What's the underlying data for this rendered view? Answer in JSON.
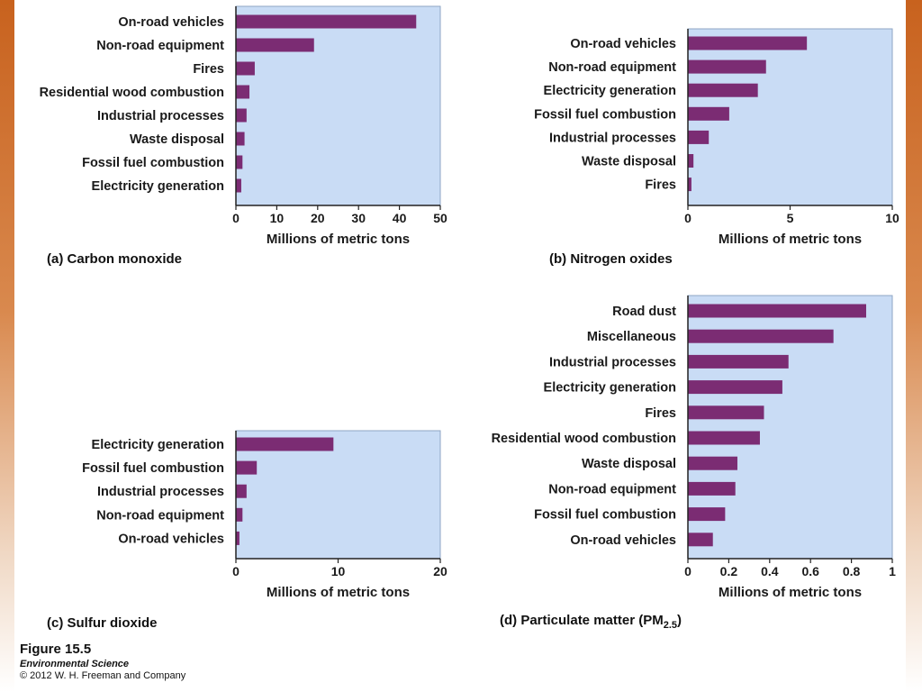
{
  "theme": {
    "bar_color": "#7b2c73",
    "plot_bg": "#c9dcf5",
    "accent_orange": "#d17334"
  },
  "chart_data": [
    {
      "id": "a",
      "type": "bar",
      "orientation": "horizontal",
      "caption_letter": "(a)",
      "caption_text": "Carbon monoxide",
      "xlabel": "Millions of metric tons",
      "xlim": [
        0,
        50
      ],
      "ticks": [
        "0",
        "10",
        "20",
        "30",
        "40",
        "50"
      ],
      "tick_values": [
        0,
        10,
        20,
        30,
        40,
        50
      ],
      "categories": [
        "On-road vehicles",
        "Non-road equipment",
        "Fires",
        "Residential wood combustion",
        "Industrial processes",
        "Waste disposal",
        "Fossil fuel combustion",
        "Electricity generation"
      ],
      "values": [
        44,
        19,
        4.5,
        3.2,
        2.5,
        2.0,
        1.5,
        1.2
      ]
    },
    {
      "id": "b",
      "type": "bar",
      "orientation": "horizontal",
      "caption_letter": "(b)",
      "caption_text": "Nitrogen oxides",
      "xlabel": "Millions of metric tons",
      "xlim": [
        0,
        10
      ],
      "ticks": [
        "0",
        "5",
        "10"
      ],
      "tick_values": [
        0,
        5,
        10
      ],
      "categories": [
        "On-road vehicles",
        "Non-road equipment",
        "Electricity generation",
        "Fossil fuel combustion",
        "Industrial processes",
        "Waste disposal",
        "Fires"
      ],
      "values": [
        5.8,
        3.8,
        3.4,
        2.0,
        1.0,
        0.25,
        0.15
      ]
    },
    {
      "id": "c",
      "type": "bar",
      "orientation": "horizontal",
      "caption_letter": "(c)",
      "caption_text": "Sulfur dioxide",
      "xlabel": "Millions of metric tons",
      "xlim": [
        0,
        20
      ],
      "ticks": [
        "0",
        "10",
        "20"
      ],
      "tick_values": [
        0,
        10,
        20
      ],
      "categories": [
        "Electricity generation",
        "Fossil fuel combustion",
        "Industrial processes",
        "Non-road equipment",
        "On-road vehicles"
      ],
      "values": [
        9.5,
        2.0,
        1.0,
        0.6,
        0.3
      ]
    },
    {
      "id": "d",
      "type": "bar",
      "orientation": "horizontal",
      "caption_letter": "(d)",
      "caption_text": "Particulate matter (PM",
      "caption_sub": "2.5",
      "caption_close": ")",
      "xlabel": "Millions of metric tons",
      "xlim": [
        0,
        1
      ],
      "ticks": [
        "0",
        "0.2",
        "0.4",
        "0.6",
        "0.8",
        "1"
      ],
      "tick_values": [
        0,
        0.2,
        0.4,
        0.6,
        0.8,
        1
      ],
      "categories": [
        "Road dust",
        "Miscellaneous",
        "Industrial processes",
        "Electricity generation",
        "Fires",
        "Residential wood combustion",
        "Waste disposal",
        "Non-road equipment",
        "Fossil fuel combustion",
        "On-road vehicles"
      ],
      "values": [
        0.87,
        0.71,
        0.49,
        0.46,
        0.37,
        0.35,
        0.24,
        0.23,
        0.18,
        0.12
      ]
    }
  ],
  "figure": {
    "number": "Figure 15.5",
    "book": "Environmental Science",
    "copyright": "© 2012 W. H. Freeman and Company"
  }
}
